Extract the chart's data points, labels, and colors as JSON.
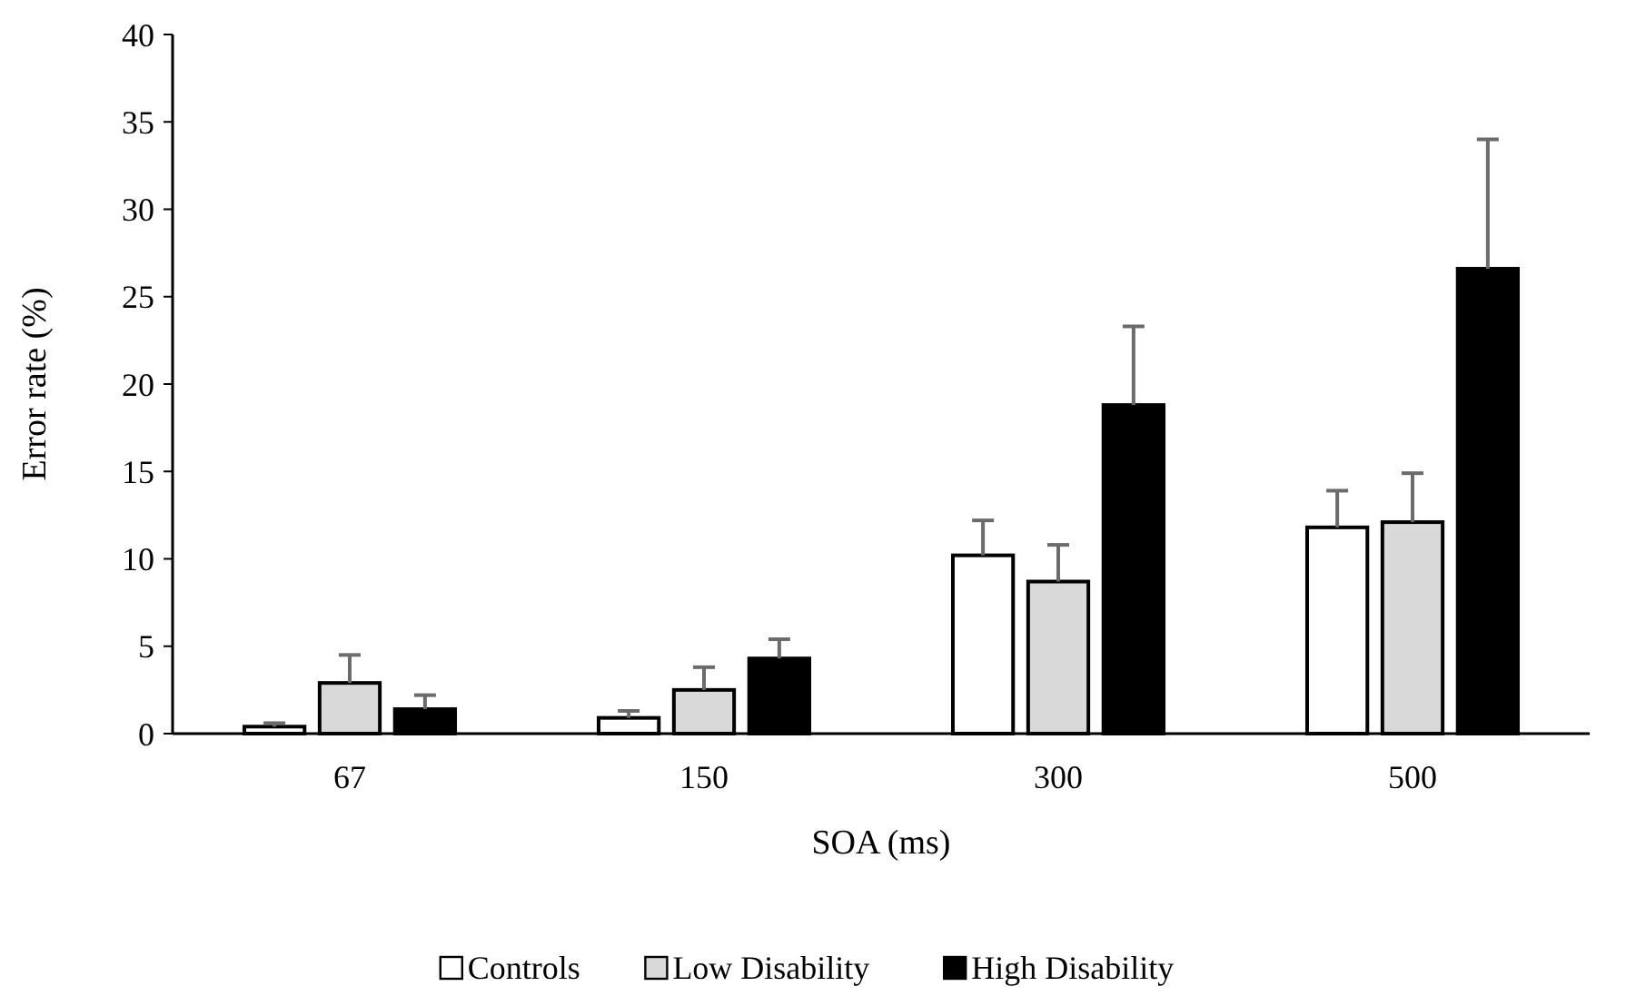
{
  "chart_data": {
    "type": "bar",
    "xlabel": "SOA (ms)",
    "ylabel": "Error rate (%)",
    "categories": [
      "67",
      "150",
      "300",
      "500"
    ],
    "series": [
      {
        "name": "Controls",
        "color": "#ffffff",
        "values": [
          0.4,
          0.9,
          10.2,
          11.8
        ],
        "errors": [
          [
            0.4,
            0.6
          ],
          [
            0.9,
            1.3
          ],
          [
            10.2,
            12.2
          ],
          [
            11.8,
            13.9
          ]
        ]
      },
      {
        "name": "Low Disability",
        "color": "#d9d9d9",
        "values": [
          2.9,
          2.5,
          8.7,
          12.1
        ],
        "errors": [
          [
            2.9,
            4.5
          ],
          [
            2.5,
            3.8
          ],
          [
            8.7,
            10.8
          ],
          [
            12.1,
            14.9
          ]
        ]
      },
      {
        "name": "High Disability",
        "color": "#000000",
        "values": [
          1.4,
          4.3,
          18.8,
          26.6
        ],
        "errors": [
          [
            1.4,
            2.2
          ],
          [
            4.3,
            5.4
          ],
          [
            18.8,
            23.3
          ],
          [
            26.6,
            34
          ]
        ]
      }
    ],
    "ylim": [
      0,
      40
    ],
    "yticks": [
      0,
      5,
      10,
      15,
      20,
      25,
      30,
      35,
      40
    ],
    "grid": false,
    "legend": "bottom"
  }
}
